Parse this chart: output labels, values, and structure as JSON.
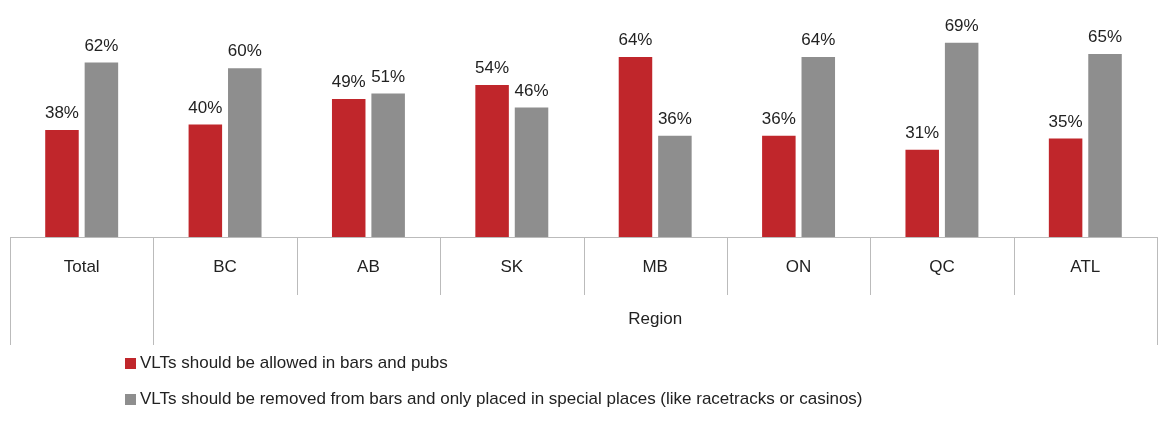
{
  "chart_data": {
    "type": "bar",
    "categories": [
      "Total",
      "BC",
      "AB",
      "SK",
      "MB",
      "ON",
      "QC",
      "ATL"
    ],
    "series": [
      {
        "name": "VLTs should be allowed in bars and pubs",
        "color": "#c0262b",
        "values": [
          38,
          40,
          49,
          54,
          64,
          36,
          31,
          35
        ],
        "value_labels": [
          "38%",
          "40%",
          "49%",
          "54%",
          "64%",
          "36%",
          "31%",
          "35%"
        ]
      },
      {
        "name": "VLTs should be removed from bars and only placed in special places (like racetracks or casinos)",
        "color": "#8e8e8e",
        "values": [
          62,
          60,
          51,
          46,
          36,
          64,
          69,
          65
        ],
        "value_labels": [
          "62%",
          "60%",
          "51%",
          "46%",
          "36%",
          "64%",
          "69%",
          "65%"
        ]
      }
    ],
    "annotations": [
      "Region"
    ],
    "legend": "bottom"
  }
}
